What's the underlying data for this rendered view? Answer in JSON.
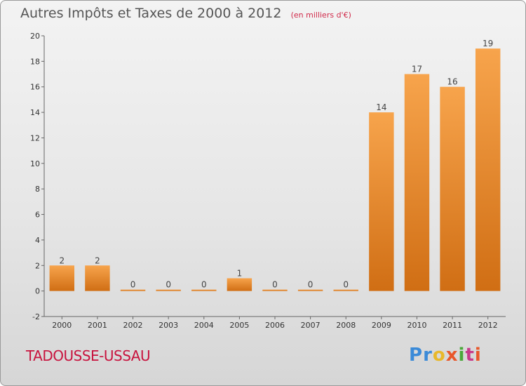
{
  "title": "Autres Impôts et Taxes de 2000 à 2012",
  "unit_note": "(en milliers d'€)",
  "commune": "TADOUSSE-USSAU",
  "logo": {
    "letters": [
      "P",
      "r",
      "o",
      "x",
      "i",
      "t",
      "i"
    ],
    "colors": [
      "#3a8ad8",
      "#3a8ad8",
      "#e8b82a",
      "#e8572a",
      "#4aa83a",
      "#c83a8a",
      "#e8572a"
    ]
  },
  "colors": {
    "bar_top": "#f7a44c",
    "bar_bottom": "#d06e14",
    "title": "#555555",
    "commune": "#c8123d"
  },
  "chart_data": {
    "type": "bar",
    "categories": [
      "2000",
      "2001",
      "2002",
      "2003",
      "2004",
      "2005",
      "2006",
      "2007",
      "2008",
      "2009",
      "2010",
      "2011",
      "2012"
    ],
    "values": [
      2,
      2,
      0,
      0,
      0,
      1,
      0,
      0,
      0,
      14,
      17,
      16,
      19
    ],
    "ylim": [
      -2,
      20
    ],
    "yticks": [
      -2,
      0,
      2,
      4,
      6,
      8,
      10,
      12,
      14,
      16,
      18,
      20
    ],
    "grid": false,
    "legend": "none"
  }
}
